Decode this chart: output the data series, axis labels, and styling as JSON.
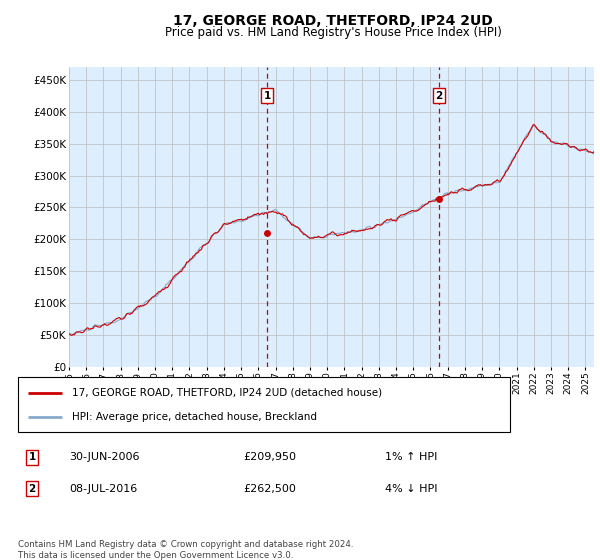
{
  "title": "17, GEORGE ROAD, THETFORD, IP24 2UD",
  "subtitle": "Price paid vs. HM Land Registry's House Price Index (HPI)",
  "ytick_vals": [
    0,
    50000,
    100000,
    150000,
    200000,
    250000,
    300000,
    350000,
    400000,
    450000
  ],
  "ylim": [
    0,
    470000
  ],
  "xlim_start": 1995.0,
  "xlim_end": 2025.5,
  "marker1_x": 2006.5,
  "marker1_y": 209950,
  "marker1_label": "1",
  "marker1_date": "30-JUN-2006",
  "marker1_price": "£209,950",
  "marker1_hpi": "1% ↑ HPI",
  "marker2_x": 2016.5,
  "marker2_y": 262500,
  "marker2_label": "2",
  "marker2_date": "08-JUL-2016",
  "marker2_price": "£262,500",
  "marker2_hpi": "4% ↓ HPI",
  "legend_line1": "17, GEORGE ROAD, THETFORD, IP24 2UD (detached house)",
  "legend_line2": "HPI: Average price, detached house, Breckland",
  "footer": "Contains HM Land Registry data © Crown copyright and database right 2024.\nThis data is licensed under the Open Government Licence v3.0.",
  "line_color_red": "#cc0000",
  "line_color_blue": "#88aacc",
  "background_color": "#ddeeff",
  "plot_bg": "#ffffff",
  "grid_color": "#bbbbbb"
}
